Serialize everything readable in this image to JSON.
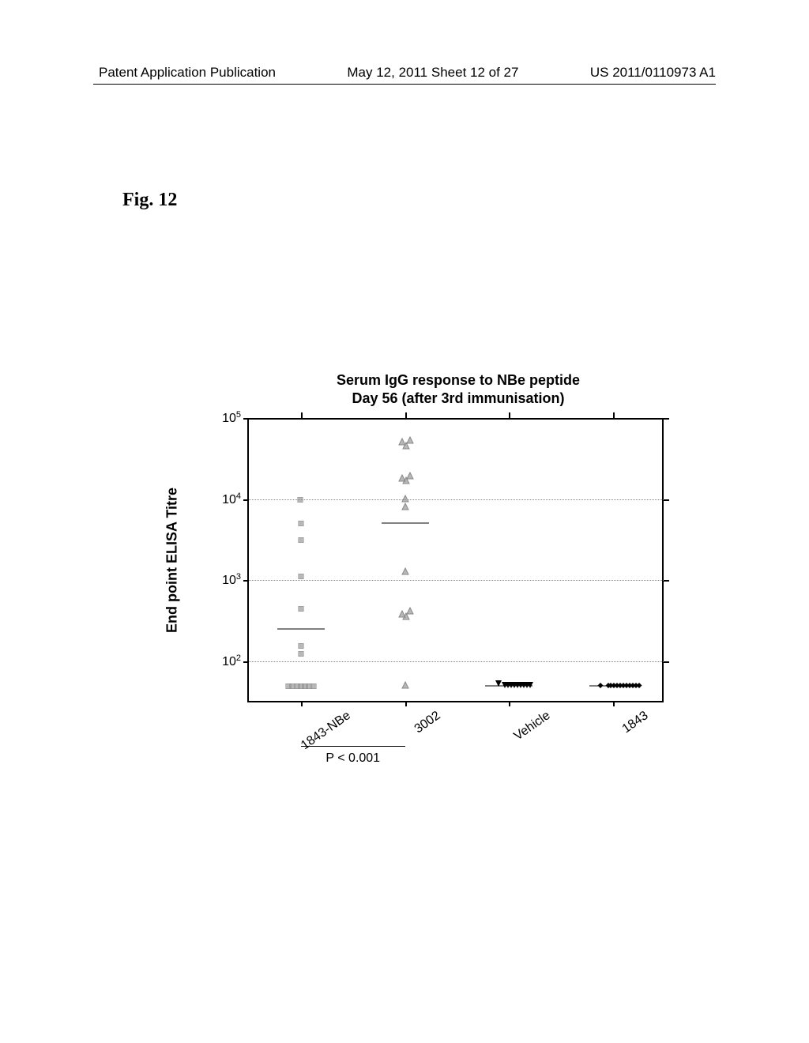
{
  "header": {
    "left": "Patent Application Publication",
    "center": "May 12, 2011  Sheet 12 of 27",
    "right": "US 2011/0110973 A1"
  },
  "figure_label": "Fig. 12",
  "chart": {
    "type": "scatter",
    "title_line1": "Serum IgG response to NBe peptide",
    "title_line2": "Day 56 (after 3rd immunisation)",
    "y_label": "End point ELISA Titre",
    "y_axis": {
      "scale": "log",
      "min_exp": 1.5,
      "max_exp": 5,
      "ticks": [
        2,
        3,
        4,
        5
      ],
      "tick_labels": [
        "10<sup>2</sup>",
        "10<sup>3</sup>",
        "10<sup>4</sup>",
        "10<sup>5</sup>"
      ],
      "gridlines_exp": [
        2,
        3,
        4
      ]
    },
    "x_categories": [
      "1843-NBe",
      "3002",
      "Vehicle",
      "1843"
    ],
    "series": [
      {
        "category": "1843-NBe",
        "marker": "square",
        "marker_color": "#888888",
        "marker_size": 7,
        "points_exp": [
          4.0,
          3.7,
          3.5,
          3.05,
          2.65,
          2.2,
          2.1,
          1.7,
          1.7,
          1.7,
          1.7,
          1.7,
          1.7,
          1.7
        ],
        "jitter": [
          -0.01,
          0,
          0,
          0,
          0,
          0,
          0,
          -0.12,
          -0.08,
          -0.04,
          0,
          0.04,
          0.08,
          0.12
        ],
        "median_exp": 2.4
      },
      {
        "category": "3002",
        "marker": "triangle-up",
        "marker_color": "#888888",
        "marker_size": 8,
        "points_exp": [
          4.7,
          4.65,
          4.72,
          4.25,
          4.22,
          4.28,
          4.0,
          3.9,
          3.1,
          2.58,
          2.55,
          2.62,
          1.7
        ],
        "jitter": [
          -0.03,
          0.01,
          0.05,
          -0.03,
          0.01,
          0.05,
          0,
          0,
          0,
          -0.03,
          0.01,
          0.05,
          0
        ],
        "median_exp": 3.7
      },
      {
        "category": "Vehicle",
        "marker": "triangle-down",
        "marker_color": "#000000",
        "marker_size": 8,
        "points_exp": [
          1.72,
          1.7,
          1.7,
          1.7,
          1.7,
          1.7,
          1.7,
          1.7,
          1.7,
          1.7
        ],
        "jitter": [
          -0.1,
          -0.04,
          -0.01,
          0.02,
          0.05,
          0.08,
          0.11,
          0.14,
          0.17,
          0.2
        ],
        "median_exp": 1.7
      },
      {
        "category": "1843",
        "marker": "diamond",
        "marker_color": "#000000",
        "marker_size": 7,
        "points_exp": [
          1.7,
          1.7,
          1.7,
          1.7,
          1.7,
          1.7,
          1.7,
          1.7,
          1.7,
          1.7,
          1.7,
          1.7
        ],
        "jitter": [
          -0.12,
          -0.05,
          -0.02,
          0.01,
          0.04,
          0.07,
          0.1,
          0.13,
          0.16,
          0.19,
          0.22,
          0.25
        ],
        "median_exp": 1.7
      }
    ],
    "p_value": {
      "label": "P < 0.001",
      "between": [
        0,
        1
      ]
    },
    "colors": {
      "background": "#ffffff",
      "axis": "#000000",
      "grid": "#888888"
    }
  }
}
